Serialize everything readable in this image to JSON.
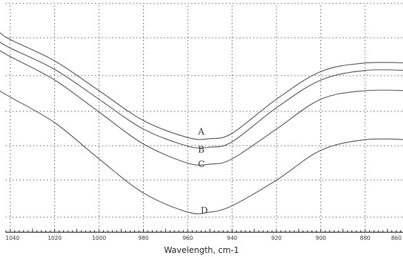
{
  "chart_data": {
    "type": "line",
    "title": "",
    "xlabel": "Wavelength, cm-1",
    "ylabel": "",
    "xlim": [
      1040,
      880
    ],
    "ylim": [
      0,
      1
    ],
    "x_ticks": [
      "1040",
      "1020",
      "1000",
      "980",
      "960",
      "940",
      "920",
      "900",
      "880",
      "860"
    ],
    "grid": true,
    "legend": "none",
    "series": [
      {
        "name": "A",
        "x": [
          1045,
          1040,
          1020,
          1000,
          980,
          960,
          950,
          940,
          920,
          900,
          880,
          860
        ],
        "y": [
          0.875,
          0.84,
          0.74,
          0.6,
          0.46,
          0.38,
          0.375,
          0.4,
          0.56,
          0.69,
          0.73,
          0.73
        ]
      },
      {
        "name": "B",
        "x": [
          1045,
          1040,
          1020,
          1000,
          980,
          960,
          950,
          940,
          920,
          900,
          880,
          860
        ],
        "y": [
          0.83,
          0.8,
          0.7,
          0.56,
          0.42,
          0.34,
          0.335,
          0.36,
          0.52,
          0.65,
          0.695,
          0.695
        ]
      },
      {
        "name": "C",
        "x": [
          1045,
          1040,
          1020,
          1000,
          980,
          960,
          950,
          940,
          920,
          900,
          880,
          860
        ],
        "y": [
          0.79,
          0.76,
          0.65,
          0.5,
          0.35,
          0.26,
          0.255,
          0.28,
          0.42,
          0.56,
          0.6,
          0.6
        ]
      },
      {
        "name": "D",
        "x": [
          1045,
          1040,
          1020,
          1000,
          980,
          960,
          950,
          940,
          920,
          900,
          880,
          860
        ],
        "y": [
          0.6,
          0.57,
          0.45,
          0.28,
          0.12,
          0.03,
          0.03,
          0.06,
          0.18,
          0.32,
          0.37,
          0.37
        ]
      }
    ]
  },
  "labels": [
    "A",
    "B",
    "C",
    "D"
  ]
}
